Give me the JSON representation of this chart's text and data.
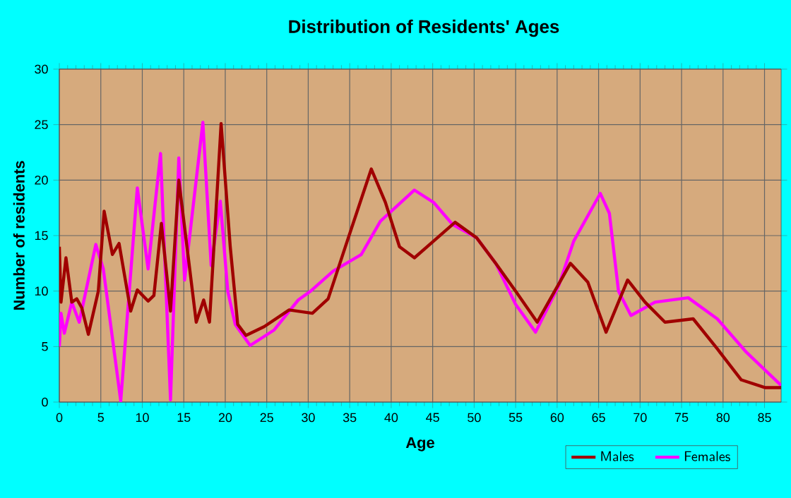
{
  "chart_data": {
    "type": "line",
    "title": "Distribution of Residents' Ages",
    "xlabel": "Age",
    "ylabel": "Number of residents",
    "xlim": [
      0,
      87
    ],
    "ylim": [
      0,
      30
    ],
    "xticks": [
      0,
      5,
      10,
      15,
      20,
      25,
      30,
      35,
      40,
      45,
      50,
      55,
      60,
      65,
      70,
      75,
      80,
      85
    ],
    "yticks": [
      0,
      5,
      10,
      15,
      20,
      25,
      30
    ],
    "grid": true,
    "legend": "bottom",
    "series": [
      {
        "name": "Males",
        "color": "#a00000",
        "x": [
          0,
          0.2,
          0.8,
          1.5,
          2.1,
          2.7,
          3.5,
          4.7,
          5.4,
          6.4,
          7.2,
          8.6,
          9.4,
          10.7,
          11.4,
          12.3,
          13.4,
          14.4,
          16.5,
          17.4,
          18.1,
          19.5,
          20.6,
          21.5,
          22.5,
          24.7,
          27.7,
          30.5,
          32.4,
          34.7,
          37.6,
          39.3,
          41,
          42.8,
          45.1,
          47.7,
          50.3,
          52.6,
          55,
          57.6,
          61.6,
          63.7,
          65.9,
          68.5,
          70.6,
          73,
          76.4,
          79.3,
          82.2,
          85.1,
          87
        ],
        "values": [
          14,
          9,
          13,
          9,
          9.3,
          8.5,
          6.1,
          10,
          17.2,
          13.3,
          14.3,
          8.2,
          10.1,
          9.1,
          9.6,
          16.1,
          8.2,
          20,
          7.2,
          9.2,
          7.2,
          25.1,
          14,
          7,
          6,
          6.8,
          8.3,
          8,
          9.3,
          14.5,
          21,
          18,
          14,
          13,
          14.5,
          16.2,
          14.8,
          12.5,
          10,
          7.2,
          12.5,
          10.8,
          6.3,
          11,
          9,
          7.2,
          7.5,
          4.8,
          2,
          1.3,
          1.3
        ]
      },
      {
        "name": "Females",
        "color": "#ff00ff",
        "x": [
          0,
          0.2,
          0.6,
          1.5,
          2.4,
          4.4,
          5.3,
          7.4,
          9.4,
          10.7,
          12.2,
          13.4,
          14.4,
          15.1,
          17.3,
          18.3,
          19.4,
          20.3,
          21.2,
          23,
          25.9,
          28.8,
          30.3,
          33,
          36.4,
          38.7,
          42.8,
          45.1,
          47.4,
          50.3,
          52.6,
          55,
          57.4,
          60.2,
          62,
          65.2,
          66.3,
          67.4,
          68.9,
          71.8,
          75.8,
          79.3,
          82.8,
          87
        ],
        "values": [
          5,
          8,
          6.2,
          9,
          7.2,
          14.2,
          12,
          0.1,
          19.3,
          12,
          22.4,
          0.2,
          22,
          11,
          25.2,
          12.3,
          18.1,
          10,
          7,
          5.1,
          6.5,
          9.2,
          10,
          11.8,
          13.3,
          16.3,
          19.1,
          18,
          16,
          14.8,
          12.5,
          8.8,
          6.3,
          10.5,
          14.5,
          18.8,
          17,
          10,
          7.8,
          9,
          9.4,
          7.5,
          4.5,
          1.5
        ]
      }
    ]
  }
}
